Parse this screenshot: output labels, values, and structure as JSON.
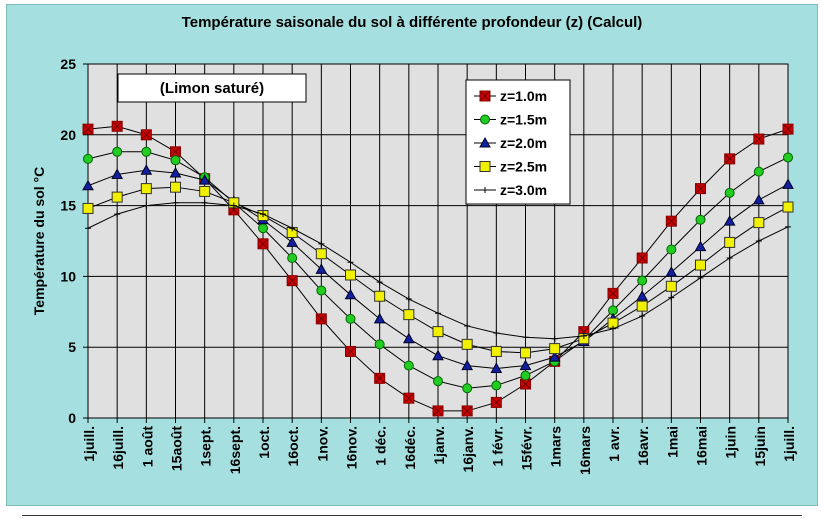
{
  "chart_data": {
    "type": "line",
    "title": "Température saisonale du sol à différente profondeur (z)  (Calcul)",
    "annotation": "(Limon saturé)",
    "xlabel": "",
    "ylabel": "Température du sol °C",
    "ylim": [
      0,
      25
    ],
    "yticks": [
      0,
      5,
      10,
      15,
      20,
      25
    ],
    "grid": true,
    "legend_position": "top-right",
    "categories": [
      "1juill.",
      "16juill.",
      "1 août",
      "15août",
      "1sept.",
      "16sept.",
      "1oct.",
      "16oct.",
      "1nov.",
      "16nov.",
      "1 déc.",
      "16déc.",
      "1janv.",
      "16janv.",
      "1 févr.",
      "15févr.",
      "1mars",
      "16mars",
      "1 avr.",
      "16avr.",
      "1mai",
      "16mai",
      "1juin",
      "15juin",
      "1juill."
    ],
    "series": [
      {
        "name": "z=1.0m",
        "color": "#cc0000",
        "marker": "square-x",
        "values": [
          20.4,
          20.6,
          20.0,
          18.8,
          16.9,
          14.7,
          12.3,
          9.7,
          7.0,
          4.7,
          2.8,
          1.4,
          0.5,
          0.5,
          1.1,
          2.4,
          4.0,
          6.1,
          8.8,
          11.3,
          13.9,
          16.2,
          18.3,
          19.7,
          20.4
        ]
      },
      {
        "name": "z=1.5m",
        "color": "#22cc22",
        "marker": "circle",
        "values": [
          18.3,
          18.8,
          18.8,
          18.2,
          17.0,
          15.2,
          13.4,
          11.3,
          9.0,
          7.0,
          5.2,
          3.7,
          2.6,
          2.1,
          2.3,
          3.0,
          4.0,
          5.5,
          7.6,
          9.7,
          11.9,
          14.0,
          15.9,
          17.4,
          18.4
        ]
      },
      {
        "name": "z=2.0m",
        "color": "#1020a0",
        "marker": "triangle",
        "values": [
          16.4,
          17.2,
          17.5,
          17.3,
          16.8,
          15.3,
          14.0,
          12.4,
          10.5,
          8.7,
          7.0,
          5.6,
          4.4,
          3.7,
          3.5,
          3.7,
          4.3,
          5.4,
          7.0,
          8.6,
          10.3,
          12.1,
          13.9,
          15.4,
          16.5
        ]
      },
      {
        "name": "z=2.5m",
        "color": "#f0f000",
        "marker": "square",
        "values": [
          14.8,
          15.6,
          16.2,
          16.3,
          16.0,
          15.2,
          14.3,
          13.1,
          11.6,
          10.1,
          8.6,
          7.3,
          6.1,
          5.2,
          4.7,
          4.6,
          4.9,
          5.6,
          6.7,
          7.9,
          9.3,
          10.8,
          12.4,
          13.8,
          14.9
        ]
      },
      {
        "name": "z=3.0m",
        "color": "#000000",
        "marker": "plus",
        "values": [
          13.4,
          14.4,
          15.0,
          15.2,
          15.2,
          15.0,
          14.4,
          13.4,
          12.3,
          11.0,
          9.6,
          8.4,
          7.4,
          6.5,
          6.0,
          5.7,
          5.6,
          5.8,
          6.3,
          7.2,
          8.5,
          9.9,
          11.3,
          12.5,
          13.5
        ]
      }
    ]
  }
}
